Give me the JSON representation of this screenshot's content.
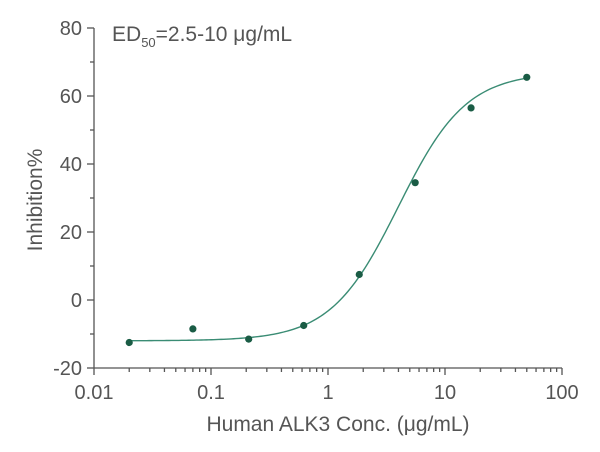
{
  "chart_data": {
    "type": "scatter",
    "title": "",
    "annotation": {
      "main": "ED",
      "subscript": "50",
      "rest": "=2.5-10 μg/mL"
    },
    "xlabel": "Human ALK3 Conc. (μg/mL)",
    "ylabel": "Inhibition%",
    "xscale": "log",
    "xlim": [
      0.01,
      100
    ],
    "ylim": [
      -20,
      80
    ],
    "xticks": [
      0.01,
      0.1,
      1,
      10,
      100
    ],
    "xtick_labels": [
      "0.01",
      "0.1",
      "1",
      "10",
      "100"
    ],
    "yticks": [
      -20,
      0,
      20,
      40,
      60,
      80
    ],
    "ytick_labels": [
      "-20",
      "0",
      "20",
      "40",
      "60",
      "80"
    ],
    "grid": false,
    "series": [
      {
        "name": "Inhibition",
        "x": [
          0.02,
          0.07,
          0.21,
          0.62,
          1.85,
          5.56,
          16.7,
          50
        ],
        "y": [
          -12.5,
          -8.5,
          -11.5,
          -7.5,
          7.5,
          34.5,
          56.5,
          65.5
        ]
      }
    ],
    "fit": {
      "model": "4PL",
      "bottom": -12,
      "top": 67,
      "ec50": 4.0,
      "hill": 1.5
    },
    "colors": {
      "points": "#1a5c45",
      "curve": "#3a8c74",
      "axis": "#555555"
    }
  }
}
